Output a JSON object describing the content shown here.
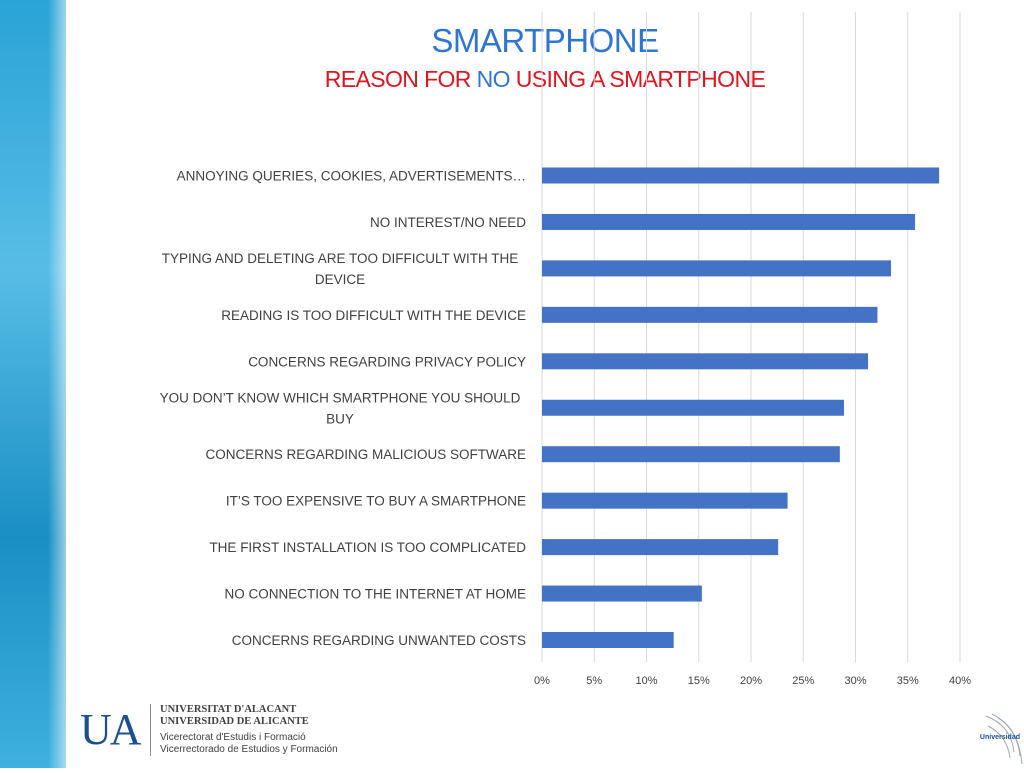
{
  "header": {
    "title": "SMARTPHONE",
    "subtitle_part1": "REASON FOR ",
    "subtitle_part2": "NO",
    "subtitle_part3": " USING A SMARTPHONE"
  },
  "colors": {
    "bar": "#4472c4",
    "title_blue": "#2e75d6",
    "subtitle_red": "#e0141e",
    "gridline": "#d9d9d9"
  },
  "chart_data": {
    "type": "bar",
    "orientation": "horizontal",
    "title": "SMARTPHONE",
    "subtitle": "REASON FOR NO USING A SMARTPHONE",
    "categories": [
      "ANNOYING QUERIES, COOKIES, ADVERTISEMENTS…",
      "NO INTEREST/NO NEED",
      "TYPING AND DELETING ARE TOO DIFFICULT WITH THE DEVICE",
      "READING IS TOO DIFFICULT WITH THE DEVICE",
      "CONCERNS REGARDING PRIVACY POLICY",
      "YOU DON’T KNOW WHICH SMARTPHONE YOU SHOULD BUY",
      "CONCERNS REGARDING MALICIOUS SOFTWARE",
      "IT’S TOO EXPENSIVE TO BUY A SMARTPHONE",
      "THE FIRST INSTALLATION IS TOO COMPLICATED",
      "NO CONNECTION TO THE INTERNET AT HOME",
      "CONCERNS REGARDING UNWANTED COSTS"
    ],
    "label_lines": [
      [
        "ANNOYING QUERIES, COOKIES, ADVERTISEMENTS…"
      ],
      [
        "NO INTEREST/NO NEED"
      ],
      [
        "TYPING AND DELETING ARE TOO DIFFICULT WITH THE",
        "DEVICE"
      ],
      [
        "READING IS TOO DIFFICULT WITH THE DEVICE"
      ],
      [
        "CONCERNS REGARDING PRIVACY POLICY"
      ],
      [
        "YOU DON’T KNOW WHICH SMARTPHONE YOU SHOULD",
        "BUY"
      ],
      [
        "CONCERNS REGARDING MALICIOUS SOFTWARE"
      ],
      [
        "IT’S TOO EXPENSIVE TO BUY A SMARTPHONE"
      ],
      [
        "THE FIRST INSTALLATION IS TOO COMPLICATED"
      ],
      [
        "NO CONNECTION TO THE INTERNET AT HOME"
      ],
      [
        "CONCERNS REGARDING UNWANTED COSTS"
      ]
    ],
    "values": [
      38.0,
      35.7,
      33.4,
      32.1,
      31.2,
      28.9,
      28.5,
      23.5,
      22.6,
      15.3,
      12.6
    ],
    "unit": "%",
    "xlim": [
      0,
      40
    ],
    "xticks": [
      "0%",
      "5%",
      "10%",
      "15%",
      "20%",
      "25%",
      "30%",
      "35%",
      "40%"
    ],
    "grid": true,
    "legend": "none"
  },
  "footer": {
    "logo_letters": "UA",
    "univ_line1": "UNIVERSITAT D'ALACANT",
    "univ_line2": "UNIVERSIDAD DE ALICANTE",
    "vice_line1": "Vicerectorat d'Estudis i Formació",
    "vice_line2": "Vicerrectorado de Estudios y Formación",
    "corner_word": "Universidad"
  }
}
